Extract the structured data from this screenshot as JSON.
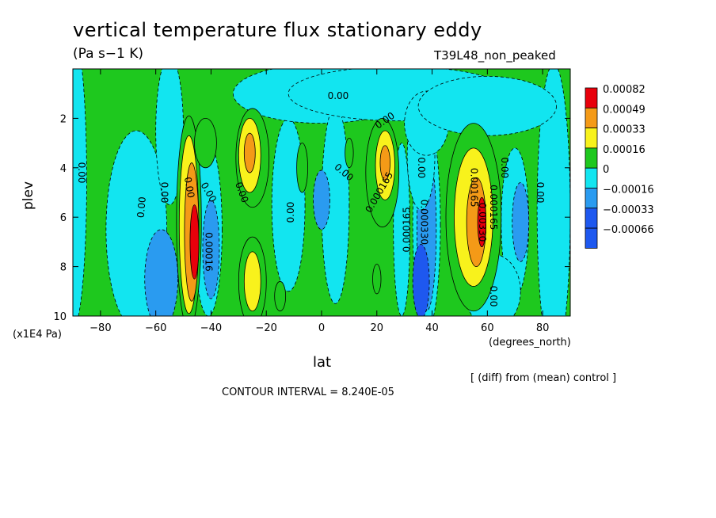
{
  "title": "vertical temperature flux stationary eddy",
  "units_label": "(Pa s−1 K)",
  "run_label": "T39L48_non_peaked",
  "y_axis_unit": "(x1E4 Pa)",
  "x_axis_unit": "(degrees_north)",
  "diff_note": "[ (diff) from (mean) control ]",
  "contour_interval": "CONTOUR INTERVAL = 8.240E-05",
  "chart_data": {
    "type": "heatmap",
    "xlabel": "lat",
    "ylabel": "plev",
    "xlim": [
      -90,
      90
    ],
    "ylim": [
      0,
      10
    ],
    "y_inverted": true,
    "x_ticks": [
      -80,
      -60,
      -40,
      -20,
      0,
      20,
      40,
      60,
      80
    ],
    "x_tick_labels": [
      "−80",
      "−60",
      "−40",
      "−20",
      "0",
      "20",
      "40",
      "60",
      "80"
    ],
    "y_ticks": [
      2,
      4,
      6,
      8,
      10
    ],
    "y_tick_labels": [
      "2",
      "4",
      "6",
      "8",
      "10"
    ],
    "legend": {
      "placement": "right",
      "levels": [
        {
          "label": "0.00082",
          "color": "#e8000b"
        },
        {
          "label": "0.00049",
          "color": "#f49a17"
        },
        {
          "label": "0.00033",
          "color": "#f8f21c"
        },
        {
          "label": "0.00016",
          "color": "#1ec81e"
        },
        {
          "label": "0",
          "color": "#12e5f0"
        },
        {
          "label": "−0.00016",
          "color": "#2a9bf0"
        },
        {
          "label": "−0.00033",
          "color": "#1e58ef"
        },
        {
          "label": "−0.00066",
          "color": "#1e58ef"
        }
      ]
    },
    "contour_labels": [
      {
        "text": "0.00",
        "lat": -87,
        "p": 4.2,
        "rot": 90
      },
      {
        "text": "0.00",
        "lat": -57,
        "p": 5.0,
        "rot": 90
      },
      {
        "text": "0.00",
        "lat": -48,
        "p": 4.8,
        "rot": 80
      },
      {
        "text": "0.00",
        "lat": -41,
        "p": 5.0,
        "rot": 60
      },
      {
        "text": "0.00",
        "lat": -65,
        "p": 5.6,
        "rot": -85
      },
      {
        "text": "0.00016",
        "lat": -41,
        "p": 7.4,
        "rot": 90
      },
      {
        "text": "0.00",
        "lat": -29,
        "p": 5.0,
        "rot": 70
      },
      {
        "text": "0.00",
        "lat": -11,
        "p": 5.8,
        "rot": -90
      },
      {
        "text": "0.00",
        "lat": 6,
        "p": 1.1,
        "rot": 0
      },
      {
        "text": "0.00",
        "lat": 23,
        "p": 2.1,
        "rot": -35
      },
      {
        "text": "0.00",
        "lat": 8,
        "p": 4.2,
        "rot": 40
      },
      {
        "text": "0.000165",
        "lat": 21,
        "p": 5.0,
        "rot": -60
      },
      {
        "text": "0.000165",
        "lat": 31,
        "p": 6.5,
        "rot": -90
      },
      {
        "text": "0.00",
        "lat": 36,
        "p": 4.0,
        "rot": 90
      },
      {
        "text": "0.000330",
        "lat": 37,
        "p": 6.2,
        "rot": 90
      },
      {
        "text": "0.00165",
        "lat": 55,
        "p": 4.8,
        "rot": 90
      },
      {
        "text": "0.00330",
        "lat": 58,
        "p": 6.2,
        "rot": 90
      },
      {
        "text": "0.000165",
        "lat": 62,
        "p": 5.6,
        "rot": 90
      },
      {
        "text": "0.00",
        "lat": 66,
        "p": 4.0,
        "rot": 90
      },
      {
        "text": "0.00",
        "lat": 79,
        "p": 5.0,
        "rot": 90
      },
      {
        "text": "0.00",
        "lat": 62,
        "p": 9.2,
        "rot": 90
      }
    ],
    "blobs": [
      {
        "lat": -90,
        "p": 4.5,
        "rx": 5,
        "ry": 6,
        "level": 4
      },
      {
        "lat": -67,
        "p": 6.5,
        "rx": 11,
        "ry": 4,
        "level": 4
      },
      {
        "lat": -55,
        "p": 2.5,
        "rx": 5,
        "ry": 3,
        "level": 4
      },
      {
        "lat": -58,
        "p": 8.5,
        "rx": 6,
        "ry": 2,
        "level": 5
      },
      {
        "lat": -41,
        "p": 6.5,
        "rx": 5,
        "ry": 3.5,
        "level": 4
      },
      {
        "lat": -40,
        "p": 7.3,
        "rx": 3,
        "ry": 2.0,
        "level": 5
      },
      {
        "lat": -12,
        "p": 5.5,
        "rx": 6,
        "ry": 3.5,
        "level": 4
      },
      {
        "lat": 0,
        "p": 1.0,
        "rx": 32,
        "ry": 1.2,
        "level": 4
      },
      {
        "lat": 5,
        "p": 5.5,
        "rx": 5,
        "ry": 4,
        "level": 4
      },
      {
        "lat": 0,
        "p": 5.3,
        "rx": 3,
        "ry": 1.2,
        "level": 5
      },
      {
        "lat": 28,
        "p": 1.0,
        "rx": 40,
        "ry": 1.1,
        "level": 4
      },
      {
        "lat": 29,
        "p": 6.5,
        "rx": 3,
        "ry": 3.5,
        "level": 4
      },
      {
        "lat": 38,
        "p": 6.3,
        "rx": 5,
        "ry": 4.3,
        "level": 4
      },
      {
        "lat": 38,
        "p": 6.5,
        "rx": 3.5,
        "ry": 3.3,
        "level": 5
      },
      {
        "lat": 36,
        "p": 8.6,
        "rx": 3,
        "ry": 1.5,
        "level": 6
      },
      {
        "lat": 36,
        "p": 3.5,
        "rx": 5,
        "ry": 2.2,
        "level": 4
      },
      {
        "lat": 38,
        "p": 2.2,
        "rx": 8,
        "ry": 1.3,
        "level": 4
      },
      {
        "lat": 70,
        "p": 6.2,
        "rx": 5,
        "ry": 3,
        "level": 4
      },
      {
        "lat": 72,
        "p": 6.2,
        "rx": 3,
        "ry": 1.6,
        "level": 5
      },
      {
        "lat": 84,
        "p": 5.8,
        "rx": 6,
        "ry": 6,
        "level": 4
      },
      {
        "lat": 62,
        "p": 9.0,
        "rx": 10,
        "ry": 1.5,
        "level": 4
      },
      {
        "lat": 60,
        "p": 1.5,
        "rx": 25,
        "ry": 1.2,
        "level": 4
      },
      {
        "lat": -48,
        "p": 6.2,
        "rx": 4.5,
        "ry": 4.3,
        "level": 3
      },
      {
        "lat": -48,
        "p": 6.3,
        "rx": 3.5,
        "ry": 3.6,
        "level": 2
      },
      {
        "lat": -47,
        "p": 6.6,
        "rx": 2.6,
        "ry": 2.8,
        "level": 1
      },
      {
        "lat": -46,
        "p": 7.0,
        "rx": 1.6,
        "ry": 1.5,
        "level": 0
      },
      {
        "lat": -25,
        "p": 3.6,
        "rx": 6,
        "ry": 2.0,
        "level": 3
      },
      {
        "lat": -26,
        "p": 3.5,
        "rx": 4,
        "ry": 1.5,
        "level": 2
      },
      {
        "lat": -26,
        "p": 3.4,
        "rx": 2,
        "ry": 0.8,
        "level": 1
      },
      {
        "lat": -25,
        "p": 8.6,
        "rx": 5,
        "ry": 1.8,
        "level": 3
      },
      {
        "lat": -25,
        "p": 8.6,
        "rx": 3,
        "ry": 1.2,
        "level": 2
      },
      {
        "lat": -42,
        "p": 3.0,
        "rx": 4,
        "ry": 1.0,
        "level": 3
      },
      {
        "lat": -7,
        "p": 4.0,
        "rx": 2,
        "ry": 1.0,
        "level": 3
      },
      {
        "lat": -15,
        "p": 9.2,
        "rx": 2,
        "ry": 0.6,
        "level": 3
      },
      {
        "lat": 10,
        "p": 3.4,
        "rx": 1.5,
        "ry": 0.6,
        "level": 3
      },
      {
        "lat": 22,
        "p": 4.2,
        "rx": 6,
        "ry": 2.2,
        "level": 3
      },
      {
        "lat": 23,
        "p": 3.9,
        "rx": 3.5,
        "ry": 1.4,
        "level": 2
      },
      {
        "lat": 23,
        "p": 3.8,
        "rx": 1.8,
        "ry": 0.7,
        "level": 1
      },
      {
        "lat": 20,
        "p": 8.5,
        "rx": 1.5,
        "ry": 0.6,
        "level": 3
      },
      {
        "lat": 55,
        "p": 6.0,
        "rx": 10,
        "ry": 3.8,
        "level": 3
      },
      {
        "lat": 55,
        "p": 6.0,
        "rx": 7,
        "ry": 2.8,
        "level": 2
      },
      {
        "lat": 56,
        "p": 6.2,
        "rx": 3.5,
        "ry": 1.8,
        "level": 1
      },
      {
        "lat": 58,
        "p": 6.2,
        "rx": 1.5,
        "ry": 1.0,
        "level": 0
      }
    ]
  }
}
